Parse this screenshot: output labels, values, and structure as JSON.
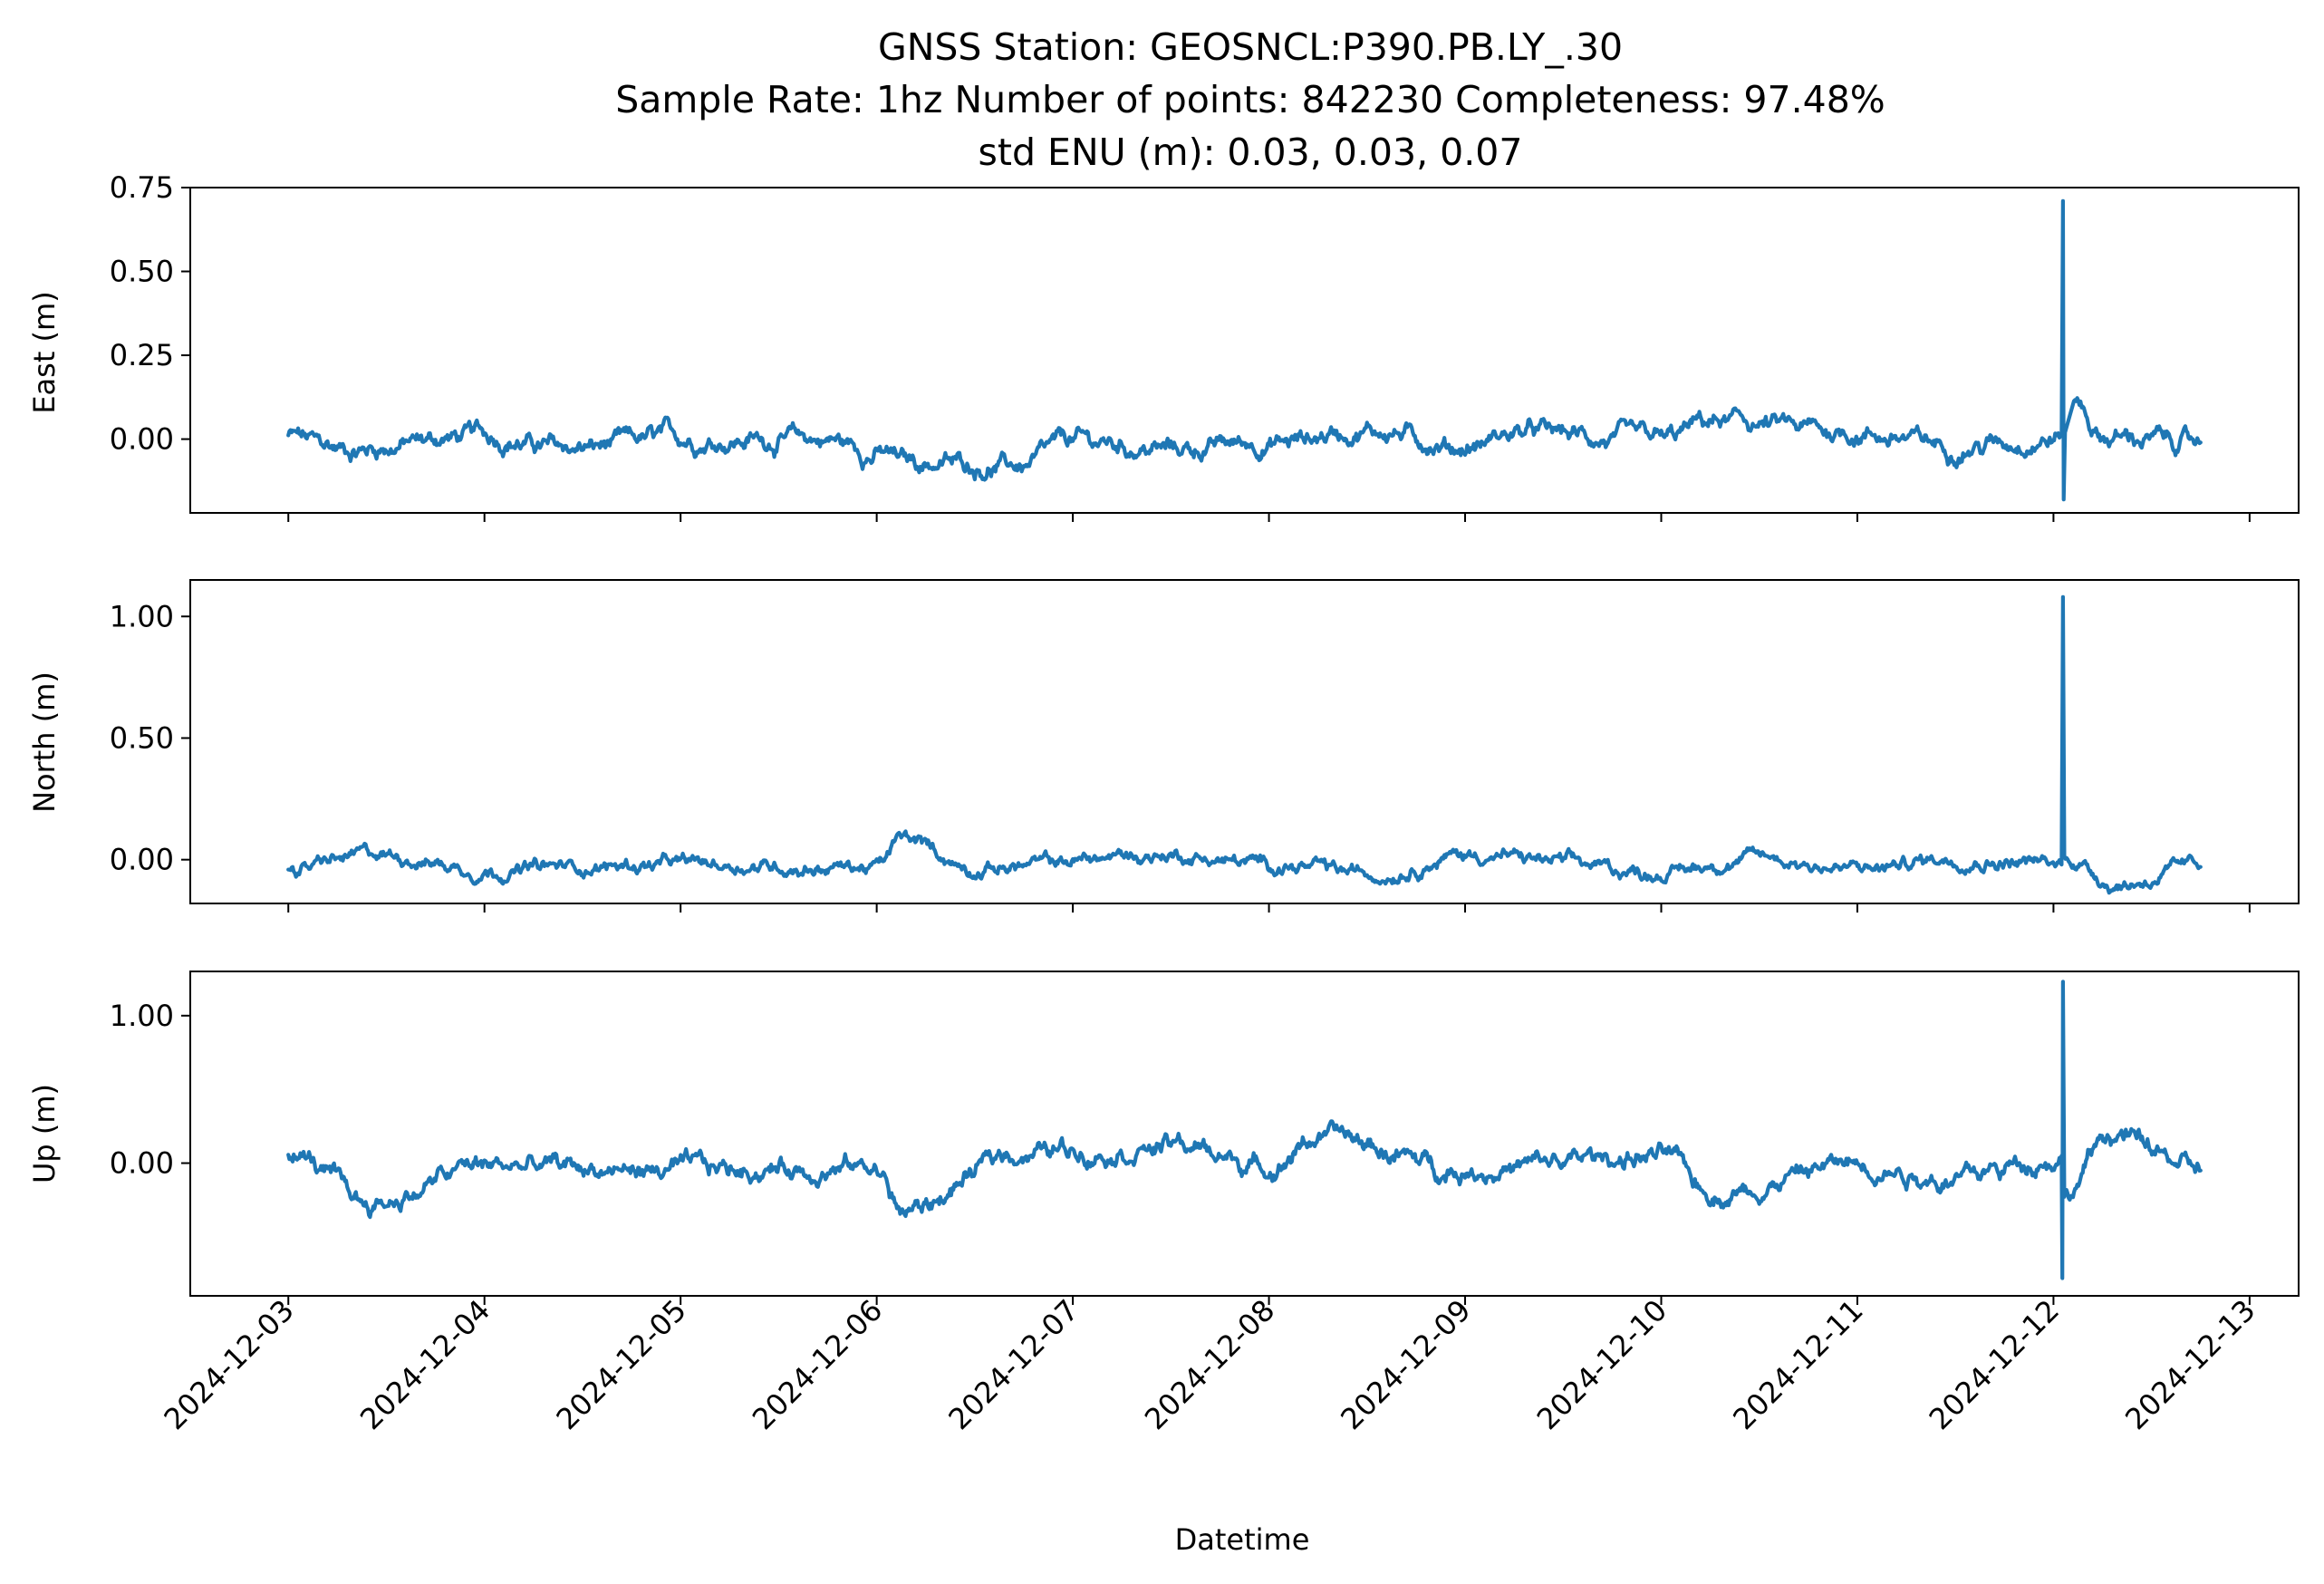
{
  "chart_data": {
    "type": "line",
    "title_lines": [
      "GNSS Station: GEOSNCL:P390.PB.LY_.30",
      "Sample Rate: 1hz   Number of points: 842230    Completeness:  97.48%",
      "std ENU (m):  0.03, 0.03, 0.07"
    ],
    "xlabel": "Datetime",
    "x_ticks": [
      "2024-12-03",
      "2024-12-04",
      "2024-12-05",
      "2024-12-06",
      "2024-12-07",
      "2024-12-08",
      "2024-12-09",
      "2024-12-10",
      "2024-12-11",
      "2024-12-12",
      "2024-12-13"
    ],
    "x_range": [
      "2024-12-02T12:00",
      "2024-12-13T06:00"
    ],
    "line_color": "#1f77b4",
    "grid": false,
    "panels": [
      {
        "ylabel": "East (m)",
        "ylim": [
          -0.22,
          0.75
        ],
        "yticks": [
          0.75,
          0.5,
          0.25,
          0.0
        ],
        "ytick_labels": [
          "0.75",
          "0.50",
          "0.25",
          "0.00"
        ],
        "baseline_std": 0.03,
        "points": [
          [
            "2024-12-03T00:00",
            0.01
          ],
          [
            "2024-12-03T06:00",
            -0.03
          ],
          [
            "2024-12-04T00:00",
            0.01
          ],
          [
            "2024-12-04T10:00",
            -0.03
          ],
          [
            "2024-12-05T00:00",
            0.0
          ],
          [
            "2024-12-05T18:00",
            0.0
          ],
          [
            "2024-12-06T00:00",
            -0.04
          ],
          [
            "2024-12-06T04:00",
            -0.07
          ],
          [
            "2024-12-06T18:00",
            -0.08
          ],
          [
            "2024-12-07T00:00",
            -0.01
          ],
          [
            "2024-12-07T12:00",
            -0.03
          ],
          [
            "2024-12-08T00:00",
            -0.01
          ],
          [
            "2024-12-08T12:00",
            0.03
          ],
          [
            "2024-12-09T00:00",
            -0.02
          ],
          [
            "2024-12-09T06:00",
            0.02
          ],
          [
            "2024-12-10T00:00",
            -0.01
          ],
          [
            "2024-12-10T06:00",
            0.05
          ],
          [
            "2024-12-11T00:00",
            0.02
          ],
          [
            "2024-12-11T12:00",
            -0.02
          ],
          [
            "2024-12-12T01:00",
            0.01
          ],
          [
            "2024-12-12T01:10",
            0.71
          ],
          [
            "2024-12-12T01:15",
            -0.18
          ],
          [
            "2024-12-12T01:25",
            0.02
          ],
          [
            "2024-12-12T02:30",
            0.12
          ],
          [
            "2024-12-12T06:00",
            0.01
          ],
          [
            "2024-12-12T18:00",
            -0.01
          ]
        ]
      },
      {
        "ylabel": "North (m)",
        "ylim": [
          -0.18,
          1.15
        ],
        "yticks": [
          1.0,
          0.5,
          0.0
        ],
        "ytick_labels": [
          "1.00",
          "0.50",
          "0.00"
        ],
        "baseline_std": 0.03,
        "points": [
          [
            "2024-12-03T00:00",
            -0.03
          ],
          [
            "2024-12-03T12:00",
            0.02
          ],
          [
            "2024-12-04T00:00",
            -0.04
          ],
          [
            "2024-12-05T00:00",
            -0.02
          ],
          [
            "2024-12-06T00:00",
            -0.03
          ],
          [
            "2024-12-06T03:00",
            0.08
          ],
          [
            "2024-12-06T12:00",
            -0.03
          ],
          [
            "2024-12-07T12:00",
            0.02
          ],
          [
            "2024-12-08T00:00",
            -0.02
          ],
          [
            "2024-12-08T12:00",
            -0.06
          ],
          [
            "2024-12-09T00:00",
            0.02
          ],
          [
            "2024-12-10T00:00",
            -0.05
          ],
          [
            "2024-12-10T12:00",
            0.01
          ],
          [
            "2024-12-11T00:00",
            -0.04
          ],
          [
            "2024-12-11T12:00",
            0.01
          ],
          [
            "2024-12-12T01:00",
            -0.02
          ],
          [
            "2024-12-12T01:10",
            1.08
          ],
          [
            "2024-12-12T01:20",
            0.01
          ],
          [
            "2024-12-12T08:00",
            -0.1
          ],
          [
            "2024-12-12T18:00",
            -0.03
          ]
        ]
      },
      {
        "ylabel": "Up (m)",
        "ylim": [
          -0.9,
          1.3
        ],
        "yticks": [
          1.0,
          0.0
        ],
        "ytick_labels": [
          "1.00",
          "0.00"
        ],
        "baseline_std": 0.07,
        "points": [
          [
            "2024-12-03T00:00",
            0.08
          ],
          [
            "2024-12-03T10:00",
            -0.28
          ],
          [
            "2024-12-04T00:00",
            -0.02
          ],
          [
            "2024-12-05T00:00",
            -0.05
          ],
          [
            "2024-12-06T00:00",
            -0.02
          ],
          [
            "2024-12-06T03:00",
            -0.33
          ],
          [
            "2024-12-06T18:00",
            0.08
          ],
          [
            "2024-12-07T12:00",
            0.12
          ],
          [
            "2024-12-08T00:00",
            -0.02
          ],
          [
            "2024-12-08T06:00",
            0.18
          ],
          [
            "2024-12-09T00:00",
            -0.04
          ],
          [
            "2024-12-10T00:00",
            0.05
          ],
          [
            "2024-12-10T06:00",
            -0.2
          ],
          [
            "2024-12-11T00:00",
            0.0
          ],
          [
            "2024-12-11T12:00",
            -0.1
          ],
          [
            "2024-12-12T01:00",
            0.05
          ],
          [
            "2024-12-12T01:05",
            -0.78
          ],
          [
            "2024-12-12T01:10",
            1.23
          ],
          [
            "2024-12-12T01:20",
            -0.2
          ],
          [
            "2024-12-12T07:00",
            0.2
          ],
          [
            "2024-12-12T18:00",
            -0.05
          ]
        ]
      }
    ]
  }
}
